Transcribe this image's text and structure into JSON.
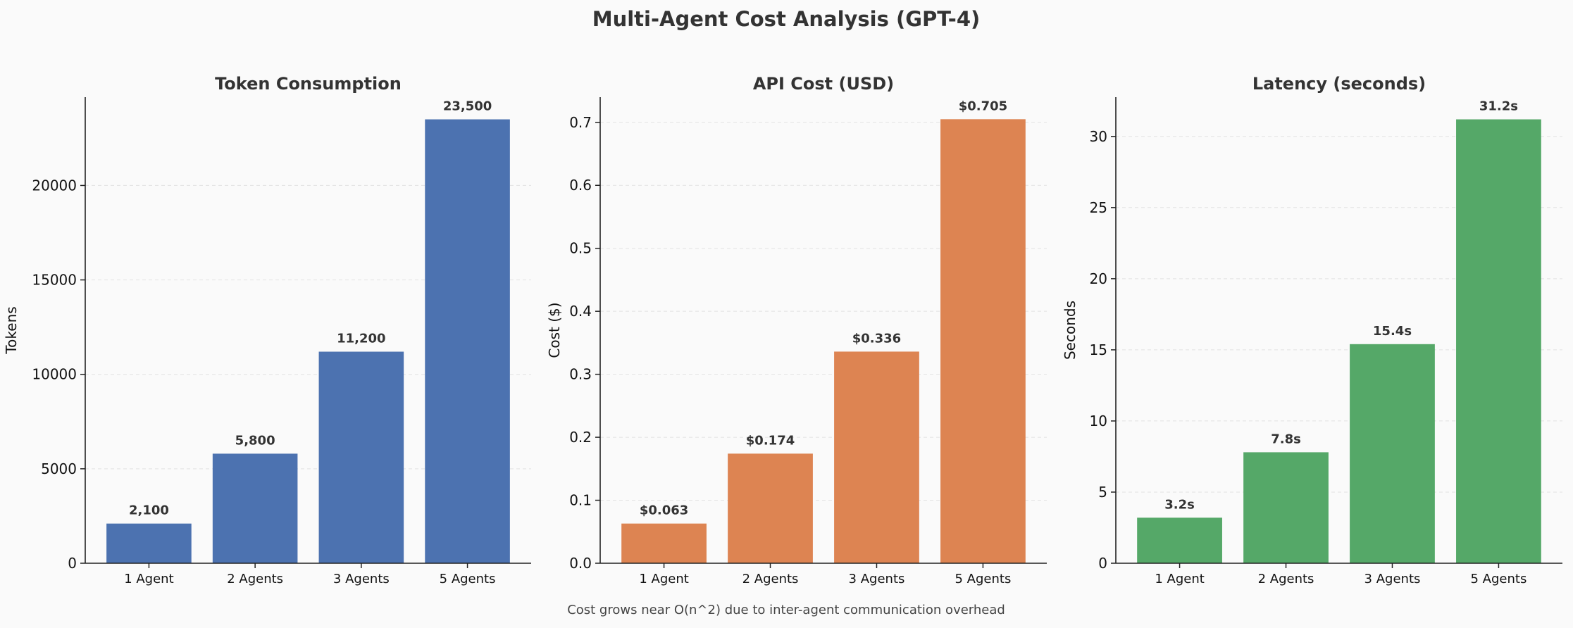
{
  "title": "Multi-Agent Cost Analysis (GPT-4)",
  "footnote": "Cost grows near O(n^2) due to inter-agent communication overhead",
  "chart_data": [
    {
      "type": "bar",
      "title": "Token Consumption",
      "xlabel": "",
      "ylabel": "Tokens",
      "categories": [
        "1 Agent",
        "2 Agents",
        "3 Agents",
        "5 Agents"
      ],
      "values": [
        2100,
        5800,
        11200,
        23500
      ],
      "data_labels": [
        "2,100",
        "5,800",
        "11,200",
        "23,500"
      ],
      "yticks": [
        0,
        5000,
        10000,
        15000,
        20000
      ],
      "ytick_labels": [
        "0",
        "5000",
        "10000",
        "15000",
        "20000"
      ],
      "ylim": [
        0,
        24675
      ],
      "color": "#4c72b0",
      "grid": "horizontal dashed"
    },
    {
      "type": "bar",
      "title": "API Cost (USD)",
      "xlabel": "",
      "ylabel": "Cost ($)",
      "categories": [
        "1 Agent",
        "2 Agents",
        "3 Agents",
        "5 Agents"
      ],
      "values": [
        0.063,
        0.174,
        0.336,
        0.705
      ],
      "data_labels": [
        "$0.063",
        "$0.174",
        "$0.336",
        "$0.705"
      ],
      "yticks": [
        0,
        0.1,
        0.2,
        0.3,
        0.4,
        0.5,
        0.6,
        0.7
      ],
      "ytick_labels": [
        "0.0",
        "0.1",
        "0.2",
        "0.3",
        "0.4",
        "0.5",
        "0.6",
        "0.7"
      ],
      "ylim": [
        0,
        0.74
      ],
      "color": "#dd8452",
      "grid": "horizontal dashed"
    },
    {
      "type": "bar",
      "title": "Latency (seconds)",
      "xlabel": "",
      "ylabel": "Seconds",
      "categories": [
        "1 Agent",
        "2 Agents",
        "3 Agents",
        "5 Agents"
      ],
      "values": [
        3.2,
        7.8,
        15.4,
        31.2
      ],
      "data_labels": [
        "3.2s",
        "7.8s",
        "15.4s",
        "31.2s"
      ],
      "yticks": [
        0,
        5,
        10,
        15,
        20,
        25,
        30
      ],
      "ytick_labels": [
        "0",
        "5",
        "10",
        "15",
        "20",
        "25",
        "30"
      ],
      "ylim": [
        0,
        32.76
      ],
      "color": "#55a868",
      "grid": "horizontal dashed"
    }
  ]
}
